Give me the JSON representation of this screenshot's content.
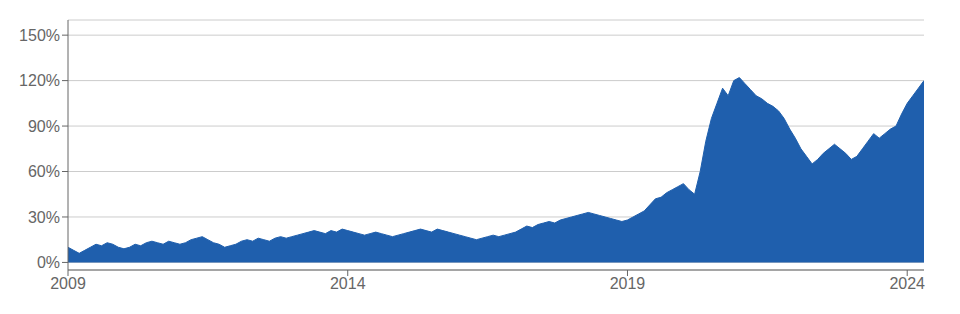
{
  "chart_data": {
    "type": "area",
    "color": "#1f5fad",
    "grid": true,
    "xlim": [
      2009,
      2024.3
    ],
    "xticks": [
      2009,
      2014,
      2019,
      2024
    ],
    "ylim": [
      -5,
      160
    ],
    "yticks": [
      {
        "value": 0,
        "label": "0%"
      },
      {
        "value": 30,
        "label": "30%"
      },
      {
        "value": 60,
        "label": "60%"
      },
      {
        "value": 90,
        "label": "90%"
      },
      {
        "value": 120,
        "label": "120%"
      },
      {
        "value": 150,
        "label": "150%"
      }
    ],
    "x": [
      2009.0,
      2009.1,
      2009.2,
      2009.3,
      2009.4,
      2009.5,
      2009.6,
      2009.7,
      2009.8,
      2009.9,
      2010.0,
      2010.1,
      2010.2,
      2010.3,
      2010.4,
      2010.5,
      2010.6,
      2010.7,
      2010.8,
      2010.9,
      2011.0,
      2011.1,
      2011.2,
      2011.3,
      2011.4,
      2011.5,
      2011.6,
      2011.7,
      2011.8,
      2011.9,
      2012.0,
      2012.1,
      2012.2,
      2012.3,
      2012.4,
      2012.5,
      2012.6,
      2012.7,
      2012.8,
      2012.9,
      2013.0,
      2013.1,
      2013.2,
      2013.3,
      2013.4,
      2013.5,
      2013.6,
      2013.7,
      2013.8,
      2013.9,
      2014.0,
      2014.1,
      2014.2,
      2014.3,
      2014.4,
      2014.5,
      2014.6,
      2014.7,
      2014.8,
      2014.9,
      2015.0,
      2015.1,
      2015.2,
      2015.3,
      2015.4,
      2015.5,
      2015.6,
      2015.7,
      2015.8,
      2015.9,
      2016.0,
      2016.1,
      2016.2,
      2016.3,
      2016.4,
      2016.5,
      2016.6,
      2016.7,
      2016.8,
      2016.9,
      2017.0,
      2017.1,
      2017.2,
      2017.3,
      2017.4,
      2017.5,
      2017.6,
      2017.7,
      2017.8,
      2017.9,
      2018.0,
      2018.1,
      2018.2,
      2018.3,
      2018.4,
      2018.5,
      2018.6,
      2018.7,
      2018.8,
      2018.9,
      2019.0,
      2019.1,
      2019.2,
      2019.3,
      2019.4,
      2019.5,
      2019.6,
      2019.7,
      2019.8,
      2019.9,
      2020.0,
      2020.1,
      2020.2,
      2020.3,
      2020.4,
      2020.5,
      2020.6,
      2020.7,
      2020.8,
      2020.9,
      2021.0,
      2021.1,
      2021.2,
      2021.3,
      2021.4,
      2021.5,
      2021.6,
      2021.7,
      2021.8,
      2021.9,
      2022.0,
      2022.1,
      2022.2,
      2022.3,
      2022.4,
      2022.5,
      2022.6,
      2022.7,
      2022.8,
      2022.9,
      2023.0,
      2023.1,
      2023.2,
      2023.3,
      2023.4,
      2023.5,
      2023.6,
      2023.7,
      2023.8,
      2023.9,
      2024.0,
      2024.1,
      2024.2,
      2024.3
    ],
    "values": [
      10,
      8,
      6,
      8,
      10,
      12,
      11,
      13,
      12,
      10,
      9,
      10,
      12,
      11,
      13,
      14,
      13,
      12,
      14,
      13,
      12,
      13,
      15,
      16,
      17,
      15,
      13,
      12,
      10,
      11,
      12,
      14,
      15,
      14,
      16,
      15,
      14,
      16,
      17,
      16,
      17,
      18,
      19,
      20,
      21,
      20,
      19,
      21,
      20,
      22,
      21,
      20,
      19,
      18,
      19,
      20,
      19,
      18,
      17,
      18,
      19,
      20,
      21,
      22,
      21,
      20,
      22,
      21,
      20,
      19,
      18,
      17,
      16,
      15,
      16,
      17,
      18,
      17,
      18,
      19,
      20,
      22,
      24,
      23,
      25,
      26,
      27,
      26,
      28,
      29,
      30,
      31,
      32,
      33,
      32,
      31,
      30,
      29,
      28,
      27,
      28,
      30,
      32,
      34,
      38,
      42,
      43,
      46,
      48,
      50,
      52,
      48,
      45,
      60,
      80,
      95,
      105,
      115,
      110,
      120,
      122,
      118,
      114,
      110,
      108,
      105,
      103,
      100,
      95,
      88,
      82,
      75,
      70,
      65,
      68,
      72,
      75,
      78,
      75,
      72,
      68,
      70,
      75,
      80,
      85,
      82,
      85,
      88,
      90,
      98,
      105,
      110,
      115,
      120
    ]
  }
}
